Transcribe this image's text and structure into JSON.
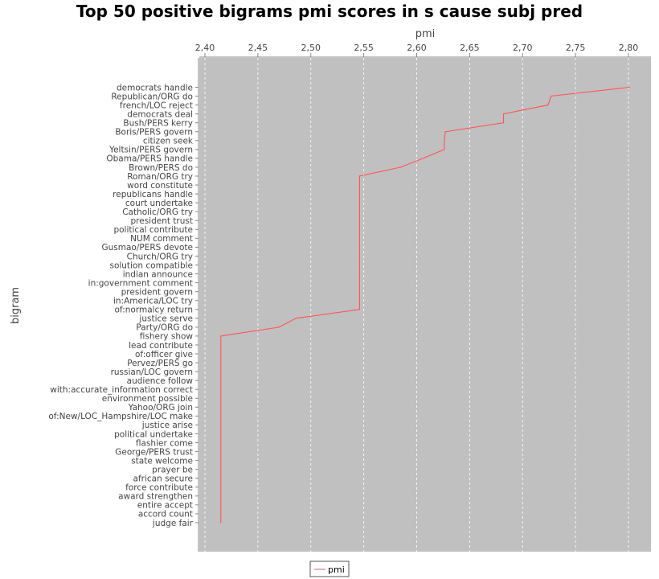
{
  "chart_data": {
    "type": "line",
    "title": "Top 50 positive bigrams pmi scores in s cause subj pred",
    "xlabel": "pmi",
    "ylabel": "bigram",
    "xlim": [
      2.397,
      2.805
    ],
    "xticks": [
      "2,40",
      "2,45",
      "2,50",
      "2,55",
      "2,60",
      "2,65",
      "2,70",
      "2,75",
      "2,80"
    ],
    "xtick_values": [
      2.4,
      2.45,
      2.5,
      2.55,
      2.6,
      2.65,
      2.7,
      2.75,
      2.8
    ],
    "x_axis_position": "top",
    "grid": true,
    "legend_position": "bottom",
    "series": [
      {
        "name": "pmi",
        "color": "#ff5555",
        "categories": [
          "democrats handle",
          "Republican/ORG do",
          "french/LOC reject",
          "democrats deal",
          "Bush/PERS kerry",
          "Boris/PERS govern",
          "citizen seek",
          "Yeltsin/PERS govern",
          "Obama/PERS handle",
          "Brown/PERS do",
          "Roman/ORG try",
          "word constitute",
          "republicans handle",
          "court undertake",
          "Catholic/ORG try",
          "president trust",
          "political contribute",
          "NUM comment",
          "Gusmao/PERS devote",
          "Church/ORG try",
          "solution compatible",
          "indian announce",
          "in:government comment",
          "president govern",
          "in:America/LOC try",
          "of:normalcy return",
          "justice serve",
          "Party/ORG do",
          "fishery show",
          "lead contribute",
          "of:officer give",
          "Pervez/PERS go",
          "russian/LOC govern",
          "audience follow",
          "with:accurate_information correct",
          "environment possible",
          "Yahoo/ORG join",
          "of:New/LOC_Hampshire/LOC make",
          "justice arise",
          "political undertake",
          "flashier come",
          "George/PERS trust",
          "state welcome",
          "prayer be",
          "african secure",
          "force contribute",
          "award strengthen",
          "entire accept",
          "accord count",
          "judge fair"
        ],
        "values": [
          2.801,
          2.727,
          2.724,
          2.682,
          2.682,
          2.627,
          2.626,
          2.626,
          2.606,
          2.585,
          2.546,
          2.546,
          2.546,
          2.546,
          2.546,
          2.546,
          2.546,
          2.546,
          2.546,
          2.546,
          2.546,
          2.546,
          2.546,
          2.546,
          2.546,
          2.546,
          2.486,
          2.47,
          2.415,
          2.415,
          2.415,
          2.415,
          2.415,
          2.415,
          2.415,
          2.415,
          2.415,
          2.415,
          2.415,
          2.415,
          2.415,
          2.415,
          2.415,
          2.415,
          2.415,
          2.415,
          2.415,
          2.415,
          2.415,
          2.415
        ]
      }
    ],
    "colors": {
      "plot_background": "#c0c0c0",
      "grid": "#ffffff",
      "series": "#ff5555"
    }
  }
}
